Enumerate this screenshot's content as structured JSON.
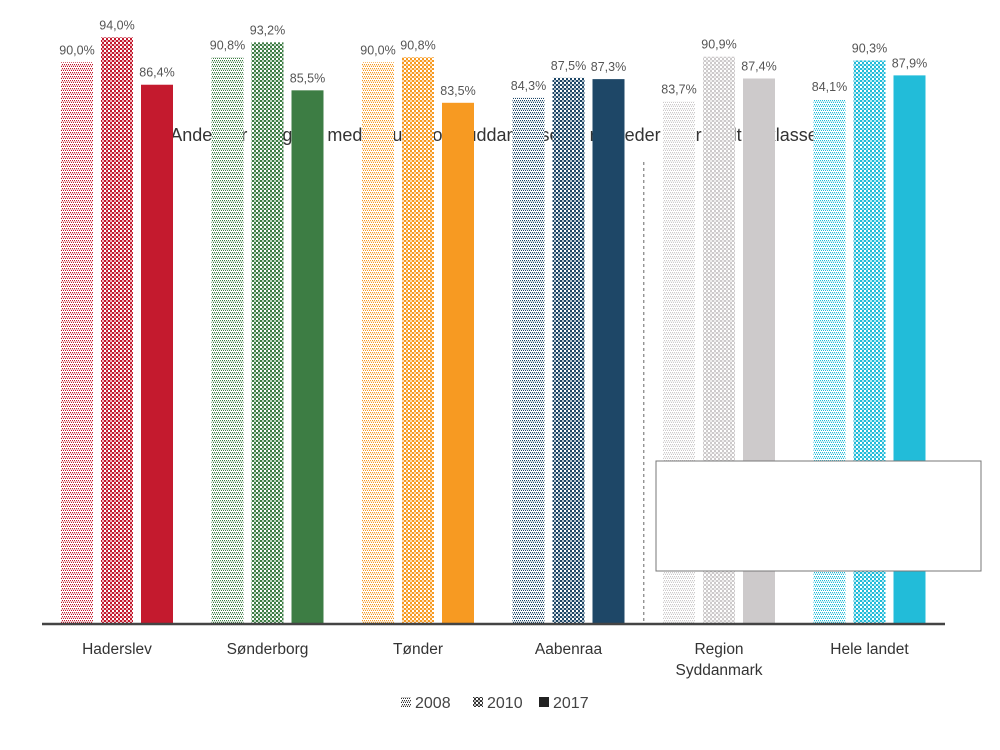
{
  "chart_data": {
    "type": "bar",
    "title": "Andel der er i gang med en ungdomsuddannelse 15 måneder efter endt 9. klasse",
    "xlabel": "",
    "ylabel": "",
    "ylim": [
      0,
      100
    ],
    "categories": [
      [
        "Haderslev"
      ],
      [
        "Sønderborg"
      ],
      [
        "Tønder"
      ],
      [
        "Aabenraa"
      ],
      [
        "Region",
        "Syddanmark"
      ],
      [
        "Hele landet"
      ]
    ],
    "series": [
      {
        "name": "2008",
        "values": [
          90.0,
          90.8,
          90.0,
          84.3,
          83.7,
          84.1
        ],
        "labels": [
          "90,0%",
          "90,8%",
          "90,0%",
          "84,3%",
          "83,7%",
          "84,1%"
        ],
        "pattern": "dots"
      },
      {
        "name": "2010",
        "values": [
          94.0,
          93.2,
          90.8,
          87.5,
          90.9,
          90.3
        ],
        "labels": [
          "94,0%",
          "93,2%",
          "90,8%",
          "87,5%",
          "90,9%",
          "90,3%"
        ],
        "pattern": "checker"
      },
      {
        "name": "2017",
        "values": [
          86.4,
          85.5,
          83.5,
          87.3,
          87.4,
          87.9
        ],
        "labels": [
          "86,4%",
          "85,5%",
          "83,5%",
          "87,3%",
          "87,4%",
          "87,9%"
        ],
        "pattern": "solid"
      }
    ],
    "category_colors": [
      "#c41a2e",
      "#3d7d44",
      "#f79a22",
      "#1e4767",
      "#cdcacb",
      "#22bcd9"
    ],
    "separator_after_category": 3,
    "legend_position": "bottom",
    "grid": false
  }
}
